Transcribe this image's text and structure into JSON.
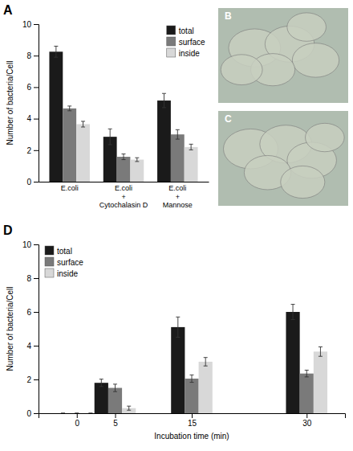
{
  "chart_data": [
    {
      "type": "bar",
      "title": "A",
      "categories": [
        "E.coli",
        "E.coli\n+\nCytochalasin D",
        "E.coli\n+\nMannose"
      ],
      "series": [
        {
          "name": "total",
          "color": "#1a1a1a",
          "values": [
            8.25,
            2.85,
            5.15
          ],
          "errors": [
            0.35,
            0.5,
            0.45
          ]
        },
        {
          "name": "surface",
          "color": "#7a7a7a",
          "values": [
            4.65,
            1.58,
            3.0
          ],
          "errors": [
            0.15,
            0.18,
            0.3
          ]
        },
        {
          "name": "inside",
          "color": "#d8d8d8",
          "values": [
            3.65,
            1.4,
            2.2
          ],
          "errors": [
            0.18,
            0.12,
            0.18
          ]
        }
      ],
      "ylabel": "Number of bacteria/Cell",
      "ylim": [
        0,
        10
      ],
      "yticks": [
        0,
        2,
        4,
        6,
        8,
        10
      ],
      "legend": "upper right",
      "grid": false
    },
    {
      "type": "image",
      "title": "B"
    },
    {
      "type": "image",
      "title": "C"
    },
    {
      "type": "bar",
      "title": "D",
      "x": [
        0,
        5,
        15,
        30
      ],
      "series": [
        {
          "name": "total",
          "color": "#1a1a1a",
          "values": [
            0.0,
            1.8,
            5.1,
            6.0
          ],
          "errors": [
            0.0,
            0.22,
            0.6,
            0.45
          ]
        },
        {
          "name": "surface",
          "color": "#7a7a7a",
          "values": [
            0.0,
            1.5,
            2.05,
            2.35
          ],
          "errors": [
            0.0,
            0.22,
            0.22,
            0.2
          ]
        },
        {
          "name": "inside",
          "color": "#d8d8d8",
          "values": [
            0.0,
            0.3,
            3.05,
            3.65
          ],
          "errors": [
            0.0,
            0.12,
            0.25,
            0.28
          ]
        }
      ],
      "xlabel": "Incubation time (min)",
      "ylabel": "Number of bacteria/Cell",
      "xlim": [
        -5,
        35
      ],
      "xticks": [
        0,
        5,
        15,
        30
      ],
      "ylim": [
        0,
        10
      ],
      "yticks": [
        0,
        2,
        4,
        6,
        8,
        10
      ],
      "legend": "upper left",
      "grid": false
    }
  ]
}
